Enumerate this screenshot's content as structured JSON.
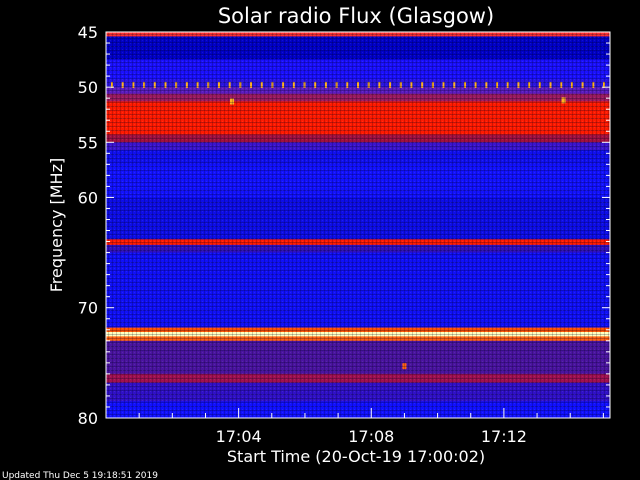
{
  "chart_data": {
    "type": "heatmap",
    "title": "Solar radio Flux (Glasgow)",
    "xlabel": "Start Time (20-Oct-19 17:00:02)",
    "ylabel": "Frequency [MHz]",
    "y_ticks": [
      45,
      50,
      55,
      60,
      70,
      80
    ],
    "x_ticks": [
      "17:04",
      "17:08",
      "17:12"
    ],
    "x_tick_minutes": [
      4,
      8,
      12
    ],
    "ylim": [
      45,
      80
    ],
    "xlim_minutes": [
      0,
      15.2
    ],
    "colormap": [
      "#0000a0",
      "#1010ff",
      "#5020c0",
      "#c01010",
      "#ff2000",
      "#ffd040",
      "#ffffe0"
    ],
    "bands": [
      {
        "freq": [
          45.0,
          45.4
        ],
        "color": "#ff3030"
      },
      {
        "freq": [
          45.4,
          47.5
        ],
        "color": "#0000c8"
      },
      {
        "freq": [
          47.5,
          49.3
        ],
        "color": "#1a10ff"
      },
      {
        "freq": [
          49.3,
          50.0
        ],
        "color": "#2a14e0"
      },
      {
        "freq": [
          50.0,
          50.6
        ],
        "color": "#5a1cc0"
      },
      {
        "freq": [
          50.6,
          51.3
        ],
        "color": "#9a1a60"
      },
      {
        "freq": [
          51.3,
          54.3
        ],
        "color": "#ff1a00"
      },
      {
        "freq": [
          54.3,
          55.0
        ],
        "color": "#a01040"
      },
      {
        "freq": [
          55.0,
          55.7
        ],
        "color": "#3a14d0"
      },
      {
        "freq": [
          55.7,
          57.0
        ],
        "color": "#1010f0"
      },
      {
        "freq": [
          57.0,
          60.0
        ],
        "color": "#1212ff"
      },
      {
        "freq": [
          60.0,
          63.8
        ],
        "color": "#0d0de8"
      },
      {
        "freq": [
          63.8,
          64.3
        ],
        "color": "#ff1a00"
      },
      {
        "freq": [
          64.3,
          65.0
        ],
        "color": "#3010c0"
      },
      {
        "freq": [
          65.0,
          71.8
        ],
        "color": "#1010f8"
      },
      {
        "freq": [
          71.8,
          72.2
        ],
        "color": "#ff5000"
      },
      {
        "freq": [
          72.2,
          72.6
        ],
        "color": "#ffffc0"
      },
      {
        "freq": [
          72.6,
          73.0
        ],
        "color": "#ff6010"
      },
      {
        "freq": [
          73.0,
          76.0
        ],
        "color": "#4a14a0"
      },
      {
        "freq": [
          76.0,
          76.8
        ],
        "color": "#a01050"
      },
      {
        "freq": [
          76.8,
          78.5
        ],
        "color": "#3010c8"
      },
      {
        "freq": [
          78.5,
          80.0
        ],
        "color": "#1010ff"
      }
    ],
    "peaks_freq": 49.8,
    "peaks_color": "#ffb020",
    "peaks_count": 47,
    "hot_spots": [
      {
        "minute": 3.8,
        "freq": 51.3,
        "color": "#ffb020"
      },
      {
        "minute": 13.8,
        "freq": 51.2,
        "color": "#ffb020"
      },
      {
        "minute": 9.0,
        "freq": 75.3,
        "color": "#ff6010"
      }
    ]
  },
  "footer": {
    "updated": "Updated Thu Dec  5 19:18:51 2019"
  }
}
